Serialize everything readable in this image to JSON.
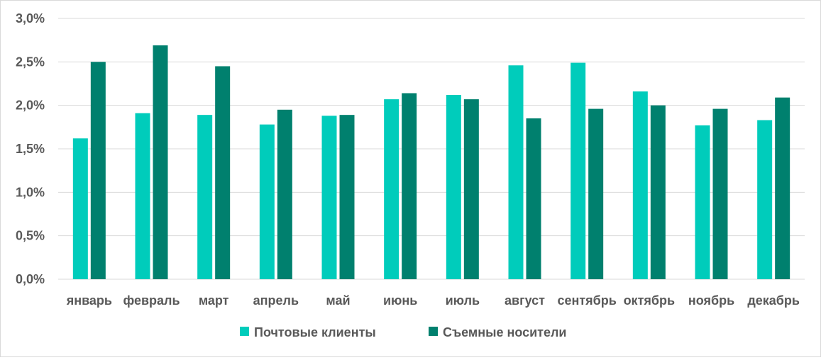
{
  "chart_data": {
    "type": "bar",
    "title": "",
    "xlabel": "",
    "ylabel": "",
    "ylim": [
      0,
      3.0
    ],
    "yticks": [
      "0,0%",
      "0,5%",
      "1,0%",
      "1,5%",
      "2,0%",
      "2,5%",
      "3,0%"
    ],
    "grid": true,
    "legend_position": "bottom",
    "categories": [
      "январь",
      "февраль",
      "март",
      "апрель",
      "май",
      "июнь",
      "июль",
      "август",
      "сентябрь",
      "октябрь",
      "ноябрь",
      "декабрь"
    ],
    "series": [
      {
        "name": "Почтовые клиенты",
        "color": "#00ccbb",
        "values": [
          1.62,
          1.91,
          1.89,
          1.78,
          1.88,
          2.07,
          2.12,
          2.46,
          2.49,
          2.16,
          1.77,
          1.83
        ]
      },
      {
        "name": "Съемные носители",
        "color": "#00806e",
        "values": [
          2.5,
          2.69,
          2.45,
          1.95,
          1.89,
          2.14,
          2.07,
          1.85,
          1.96,
          2.0,
          1.96,
          2.09
        ]
      }
    ],
    "colors": {
      "grid": "#d9d9d9",
      "text": "#595959"
    }
  }
}
